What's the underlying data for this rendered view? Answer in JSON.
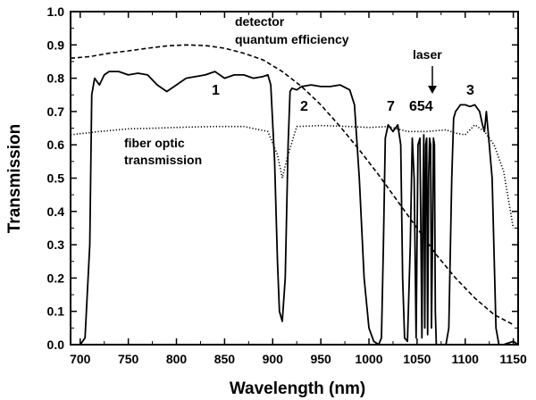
{
  "chart_data": {
    "type": "line",
    "xlabel": "Wavelength (nm)",
    "ylabel": "Transmission",
    "xlim": [
      690,
      1155
    ],
    "ylim": [
      0,
      1.0
    ],
    "x_ticks": [
      700,
      750,
      800,
      850,
      900,
      950,
      1000,
      1050,
      1100,
      1150
    ],
    "y_ticks": [
      "0.0",
      "0.1",
      "0.2",
      "0.3",
      "0.4",
      "0.5",
      "0.6",
      "0.7",
      "0.8",
      "0.9",
      "1.0"
    ],
    "grid": false,
    "series": [
      {
        "name": "detector quantum efficiency",
        "style": "dashed",
        "x": [
          690,
          710,
          730,
          750,
          770,
          790,
          810,
          830,
          850,
          870,
          890,
          910,
          930,
          950,
          970,
          990,
          1010,
          1030,
          1050,
          1070,
          1090,
          1110,
          1130,
          1150
        ],
        "y": [
          0.86,
          0.865,
          0.875,
          0.882,
          0.89,
          0.897,
          0.9,
          0.898,
          0.89,
          0.875,
          0.855,
          0.82,
          0.775,
          0.72,
          0.655,
          0.585,
          0.51,
          0.43,
          0.35,
          0.27,
          0.2,
          0.14,
          0.09,
          0.06
        ]
      },
      {
        "name": "fiber optic transmission",
        "style": "dotted",
        "x": [
          690,
          720,
          750,
          780,
          810,
          840,
          870,
          895,
          905,
          910,
          915,
          925,
          950,
          980,
          1000,
          1020,
          1040,
          1060,
          1080,
          1090,
          1100,
          1110,
          1120,
          1130,
          1140,
          1150
        ],
        "y": [
          0.63,
          0.64,
          0.648,
          0.65,
          0.653,
          0.655,
          0.655,
          0.64,
          0.57,
          0.5,
          0.56,
          0.655,
          0.658,
          0.655,
          0.652,
          0.655,
          0.64,
          0.64,
          0.645,
          0.635,
          0.63,
          0.66,
          0.64,
          0.6,
          0.52,
          0.35
        ]
      },
      {
        "name": "",
        "style": "solid",
        "x": [
          690,
          700,
          705,
          710,
          712,
          715,
          720,
          725,
          730,
          740,
          750,
          760,
          770,
          780,
          790,
          800,
          810,
          820,
          830,
          840,
          850,
          860,
          870,
          880,
          890,
          895,
          898,
          902,
          905,
          907,
          910,
          913,
          916,
          918,
          920,
          925,
          930,
          940,
          950,
          960,
          970,
          980,
          985,
          990,
          995,
          1000,
          1005,
          1010,
          1013,
          1015,
          1017,
          1020,
          1025,
          1030,
          1033,
          1035,
          1037,
          1040,
          1043,
          1045,
          1047,
          1049,
          1051,
          1053,
          1055,
          1056,
          1057,
          1058,
          1059,
          1060,
          1061,
          1062,
          1063,
          1064,
          1065,
          1066,
          1067,
          1068,
          1069,
          1070,
          1072,
          1075,
          1080,
          1083,
          1086,
          1088,
          1090,
          1095,
          1100,
          1105,
          1110,
          1115,
          1118,
          1120,
          1122,
          1125,
          1128,
          1132,
          1135,
          1140,
          1145,
          1150,
          1155
        ],
        "y": [
          0.0,
          0.0,
          0.02,
          0.3,
          0.75,
          0.8,
          0.78,
          0.81,
          0.82,
          0.82,
          0.81,
          0.815,
          0.81,
          0.78,
          0.76,
          0.78,
          0.8,
          0.805,
          0.81,
          0.82,
          0.8,
          0.81,
          0.81,
          0.8,
          0.805,
          0.81,
          0.78,
          0.55,
          0.25,
          0.1,
          0.07,
          0.2,
          0.6,
          0.76,
          0.77,
          0.765,
          0.775,
          0.78,
          0.775,
          0.775,
          0.78,
          0.765,
          0.72,
          0.5,
          0.2,
          0.05,
          0.01,
          0.0,
          0.02,
          0.3,
          0.62,
          0.66,
          0.64,
          0.66,
          0.6,
          0.2,
          0.02,
          0.01,
          0.3,
          0.62,
          0.5,
          0.02,
          0.6,
          0.62,
          0.02,
          0.4,
          0.63,
          0.05,
          0.6,
          0.62,
          0.03,
          0.5,
          0.62,
          0.6,
          0.05,
          0.3,
          0.62,
          0.6,
          0.1,
          0.0,
          0.0,
          0.0,
          0.0,
          0.05,
          0.5,
          0.68,
          0.7,
          0.72,
          0.72,
          0.715,
          0.72,
          0.7,
          0.66,
          0.64,
          0.7,
          0.6,
          0.5,
          0.05,
          0.0,
          0.0,
          0.005,
          0.01,
          0.0
        ]
      }
    ],
    "annotations": {
      "detector_line1": "detector",
      "detector_line2": "quantum efficiency",
      "fiber_line1": "fiber optic",
      "fiber_line2": "transmission",
      "laser": "laser",
      "peak_1": "1",
      "peak_2": "2",
      "peak_3": "3",
      "peak_7": "7",
      "peak_654": "654"
    }
  }
}
